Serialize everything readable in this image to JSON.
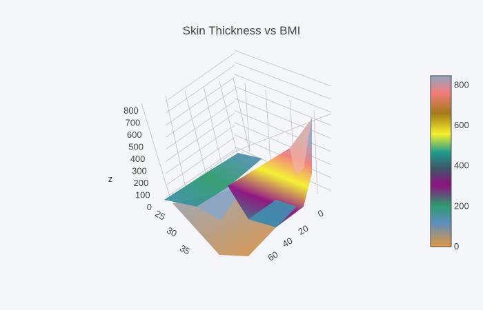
{
  "chart_data": {
    "type": "surface",
    "title": "Skin Thickness vs BMI",
    "x_axis": {
      "label": "",
      "ticks": [
        25,
        30,
        35
      ]
    },
    "y_axis": {
      "label": "",
      "ticks": [
        0,
        20,
        40,
        60
      ]
    },
    "z_axis": {
      "label": "z",
      "ticks": [
        0,
        100,
        200,
        300,
        400,
        500,
        600,
        700,
        800
      ]
    },
    "colorbar": {
      "ticks": [
        0,
        200,
        400,
        600,
        800
      ],
      "range": [
        0,
        846
      ],
      "colorscale": [
        "#e2973f",
        "#5a8fbf",
        "#2e9b6e",
        "#8e1180",
        "#3d5868",
        "#1c9c8e",
        "#f5f02a",
        "#a47a18",
        "#f27c7a",
        "#92a6c4"
      ]
    },
    "grid": true,
    "legend": "right"
  }
}
